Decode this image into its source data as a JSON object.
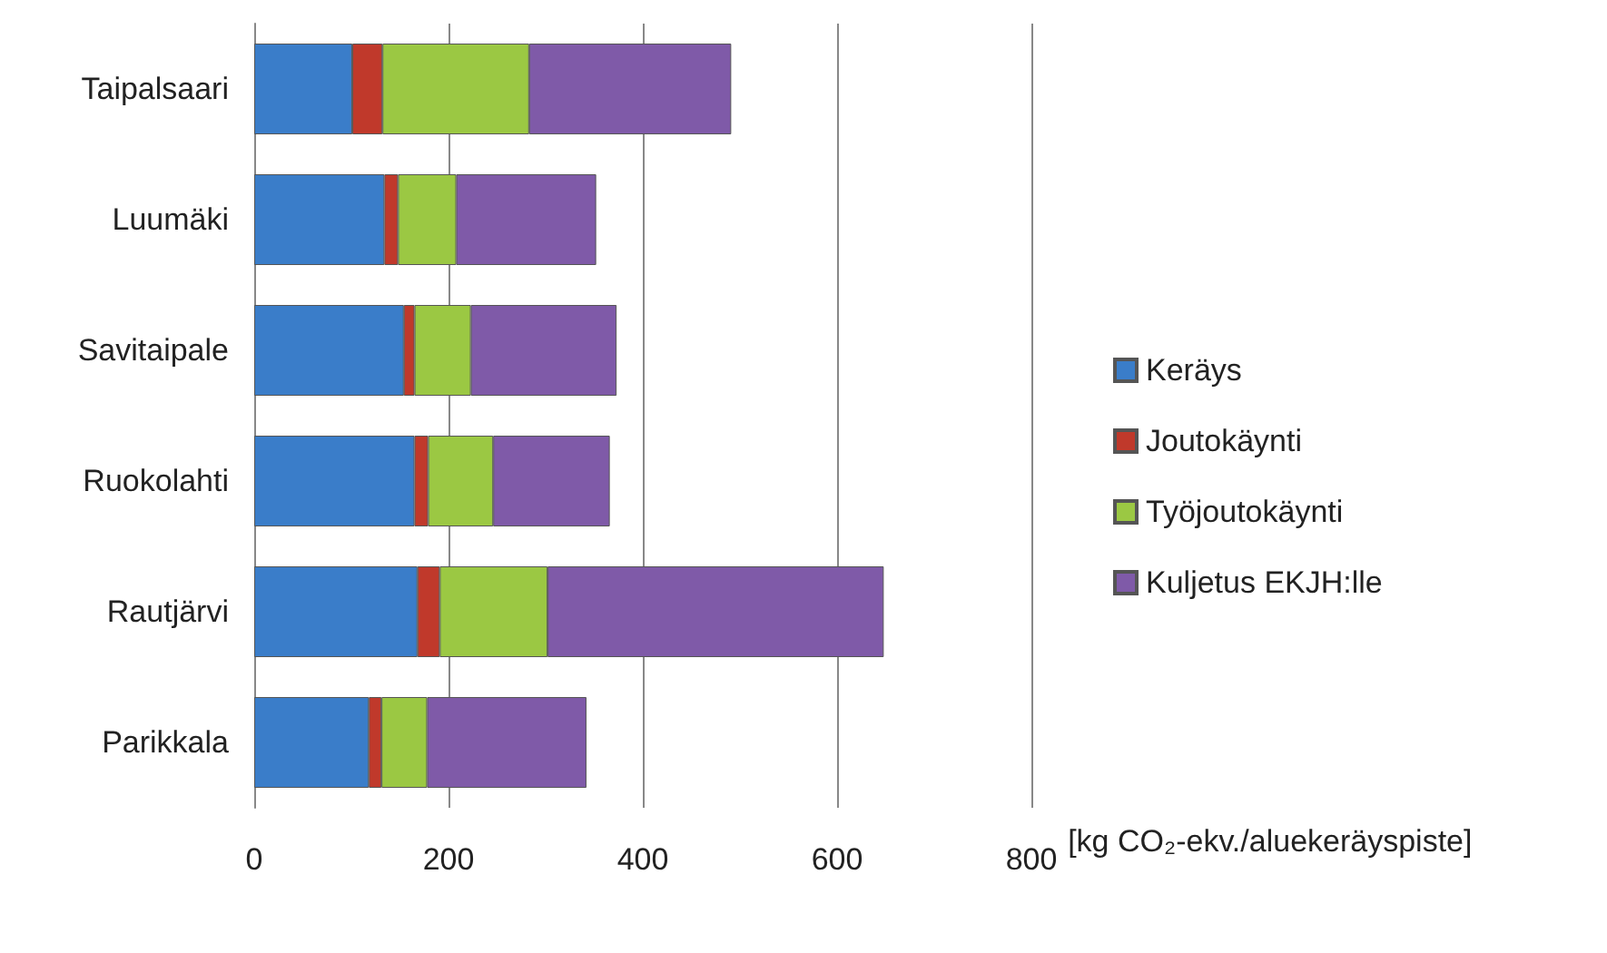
{
  "chart_data": {
    "type": "bar",
    "orientation": "horizontal",
    "stacked": true,
    "categories": [
      "Taipalsaari",
      "Luumäki",
      "Savitaipale",
      "Ruokolahti",
      "Rautjärvi",
      "Parikkala"
    ],
    "series": [
      {
        "name": "Keräys",
        "color": "#3a7dc9",
        "values": [
          101,
          134,
          154,
          165,
          168,
          118
        ]
      },
      {
        "name": "Joutokäynti",
        "color": "#c0392b",
        "values": [
          31,
          14,
          11,
          14,
          23,
          13
        ]
      },
      {
        "name": "Työjoutokäynti",
        "color": "#9bc843",
        "values": [
          151,
          60,
          58,
          67,
          111,
          47
        ]
      },
      {
        "name": "Kuljetus EKJH:lle",
        "color": "#7f5aa8",
        "values": [
          208,
          144,
          150,
          120,
          346,
          164
        ]
      }
    ],
    "xlabel": "[kg CO₂-ekv./aluekeräyspiste]",
    "xlim": [
      0,
      800
    ],
    "xticks": [
      0,
      200,
      400,
      600,
      800
    ],
    "grid": "x",
    "legend": "right"
  }
}
